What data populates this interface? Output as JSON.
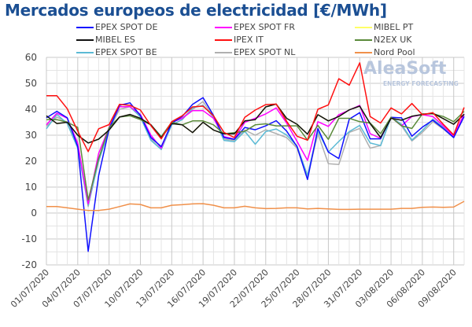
{
  "chart_data": {
    "type": "line",
    "title": "Mercados europeos de electricidad [€/MWh]",
    "xlabel": "",
    "ylabel": "",
    "ylim": [
      -20,
      60
    ],
    "yticks": [
      "-20",
      "-10",
      "0",
      "10",
      "20",
      "30",
      "40",
      "50",
      "60"
    ],
    "xtick_labels": [
      "01/07/2020",
      "04/07/2020",
      "07/07/2020",
      "10/07/2020",
      "13/07/2020",
      "16/07/2020",
      "19/07/2020",
      "22/07/2020",
      "25/07/2020",
      "28/07/2020",
      "31/07/2020",
      "03/08/2020",
      "06/08/2020",
      "09/08/2020"
    ],
    "x_count": 41,
    "grid": true,
    "legend_placement": "top",
    "series": [
      {
        "name": "MIBEL PT",
        "color": "#ffff66",
        "values": [
          37.5,
          34.5,
          35,
          30,
          27,
          28.5,
          32,
          37,
          38,
          36.5,
          34,
          29,
          34.5,
          34,
          31,
          35,
          32,
          30.5,
          30.5,
          35.5,
          36,
          40.9,
          42,
          36.5,
          34.2,
          30.4,
          37.9,
          35.5,
          37.2,
          39.8,
          41.2,
          34.5,
          29.1,
          36.5,
          35.8,
          37.3,
          38,
          38.5,
          36.4,
          34.2,
          38.1
        ]
      },
      {
        "name": "EPEX SPOT NL",
        "color": "#b0b0b0",
        "values": [
          33.5,
          37,
          35,
          25.5,
          2.5,
          21,
          32,
          40,
          41,
          37.5,
          28.5,
          24.5,
          35,
          36.5,
          40,
          43,
          37,
          28.5,
          28,
          32,
          30,
          32.1,
          30.6,
          29.1,
          25,
          13.9,
          30.6,
          19,
          18.7,
          31.1,
          32.6,
          25,
          26,
          36.9,
          33.6,
          27.8,
          31.1,
          35.2,
          32.4,
          29.1,
          37.9
        ]
      },
      {
        "name": "EPEX SPOT BE",
        "color": "#5bbad5",
        "values": [
          32.5,
          38,
          34.5,
          25,
          3,
          20,
          32,
          41,
          41,
          37,
          28,
          24.5,
          34,
          36,
          40.5,
          41.5,
          37,
          28,
          27.5,
          31.5,
          26.5,
          31.4,
          32.4,
          30.1,
          25.8,
          14.5,
          31.6,
          23.5,
          27.6,
          31.4,
          33.8,
          27,
          26,
          36.9,
          34.2,
          28.1,
          31.8,
          36.2,
          33.1,
          29.1,
          38.2
        ]
      },
      {
        "name": "EPEX SPOT FR",
        "color": "#ff00ff",
        "values": [
          34,
          38.5,
          36.5,
          27,
          3.5,
          23,
          33,
          41,
          41,
          38,
          30,
          25,
          35,
          36.5,
          39.5,
          39.5,
          36.5,
          29.5,
          28.5,
          35,
          36.5,
          38.2,
          40.5,
          34.7,
          27.6,
          20.3,
          35.2,
          33.4,
          37.9,
          39.7,
          41.5,
          30.6,
          28.8,
          36.9,
          33.6,
          37.2,
          37.9,
          37.2,
          33.6,
          29.6,
          38.2
        ]
      },
      {
        "name": "EPEX SPOT DE",
        "color": "#1010ff",
        "values": [
          36.7,
          39.2,
          36.7,
          25.6,
          -14.8,
          14.4,
          32.5,
          41.5,
          42.5,
          37.6,
          29.1,
          25.6,
          34.6,
          37.2,
          41.9,
          44.5,
          37.6,
          29.1,
          28.4,
          33,
          32.1,
          33.6,
          35.6,
          31.6,
          25.6,
          12.9,
          32.6,
          23.5,
          21,
          36.2,
          38.7,
          28.6,
          28.6,
          36.9,
          36.7,
          29.6,
          33.1,
          35.8,
          32.6,
          29.1,
          37.2
        ]
      },
      {
        "name": "N2EX UK",
        "color": "#5a8a3a",
        "values": [
          36,
          36,
          35,
          33,
          5,
          21,
          33,
          37,
          37.5,
          36,
          34,
          29.5,
          35,
          34,
          35.5,
          35.5,
          34,
          30.5,
          31,
          31.5,
          34,
          34.4,
          33.6,
          33.6,
          33.6,
          28.1,
          33.8,
          28.4,
          36.5,
          36.5,
          35.2,
          34.7,
          30.6,
          36.9,
          33.6,
          32.6,
          38.2,
          38.2,
          37.2,
          35.2,
          39.2
        ]
      },
      {
        "name": "MIBEL ES",
        "color": "#111111",
        "values": [
          37.5,
          34.5,
          35,
          30,
          27,
          28.5,
          32,
          37,
          38,
          36.5,
          34,
          29,
          34.5,
          34,
          31,
          35,
          32,
          30.5,
          30.5,
          35.5,
          36,
          40.9,
          42,
          36.5,
          34.2,
          30.4,
          37.9,
          35.5,
          37.2,
          39.8,
          41.2,
          34.5,
          29.1,
          36.5,
          35.8,
          37.3,
          38,
          38.5,
          36.4,
          34.2,
          38.1
        ]
      },
      {
        "name": "IPEX IT",
        "color": "#ff1010",
        "values": [
          45.2,
          45.2,
          40.2,
          31.6,
          23.7,
          32.5,
          34.1,
          41.9,
          41.5,
          39.7,
          33.7,
          28.6,
          35.2,
          37.5,
          40.9,
          41.2,
          37.5,
          31.1,
          29.1,
          36.9,
          39.7,
          41.8,
          42,
          35.4,
          29.6,
          28.1,
          40,
          41.7,
          51.8,
          49.3,
          57.9,
          37.2,
          34.7,
          40.5,
          38.2,
          42.2,
          37.9,
          38.7,
          34.2,
          30.1,
          40.7
        ]
      },
      {
        "name": "Nord Pool",
        "color": "#f0904a",
        "values": [
          2.5,
          2.5,
          2,
          1.5,
          1,
          1,
          1.5,
          2.5,
          3.5,
          3.3,
          2,
          2,
          3,
          3.2,
          3.5,
          3.6,
          3,
          2,
          2,
          2.6,
          2,
          1.7,
          1.8,
          2,
          2,
          1.6,
          1.8,
          1.6,
          1.4,
          1.4,
          1.5,
          1.5,
          1.5,
          1.5,
          1.8,
          1.8,
          2.2,
          2.3,
          2.2,
          2.3,
          4.5
        ]
      }
    ],
    "legend_order": [
      "EPEX SPOT DE",
      "EPEX SPOT FR",
      "MIBEL PT",
      "MIBEL ES",
      "IPEX IT",
      "N2EX UK",
      "EPEX SPOT BE",
      "EPEX SPOT NL",
      "Nord Pool"
    ]
  },
  "watermark": {
    "brand": "AleaSoft",
    "tagline": "ENERGY FORECASTING"
  }
}
